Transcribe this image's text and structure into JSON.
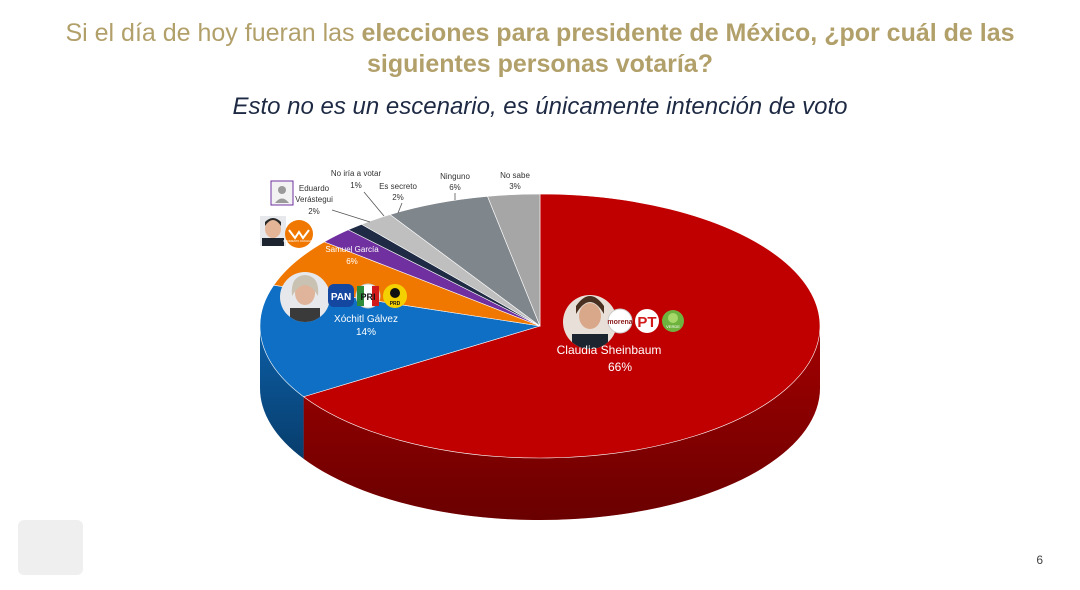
{
  "header": {
    "title_normal": "Si el día de hoy fueran las ",
    "title_bold": "elecciones para presidente de México, ¿por cuál de las siguientes personas votaría?",
    "subtitle": "Esto no es un escenario, es únicamente intención de voto"
  },
  "page_number": "6",
  "colors": {
    "title": "#b2a06b",
    "subtitle": "#1e2a44",
    "sheinbaum": "#c00000",
    "galvez": "#0e6fc4",
    "garcia": "#f07800",
    "verastegui": "#7030a0",
    "no_iria": "#1f2b44",
    "es_secreto": "#bfbfbf",
    "ninguno": "#7f868c",
    "no_sabe": "#a6a6a6"
  },
  "parties": {
    "morena": "morena",
    "pt": "PT",
    "verde": "VERDE",
    "pan": "PAN",
    "pri": "PRI",
    "prd": "PRD",
    "mc": "MOVIMIENTO CIUDADANO"
  },
  "chart_data": {
    "type": "pie",
    "unit": "%",
    "slices": [
      {
        "label": "Claudia Sheinbaum",
        "value": 66,
        "display": "66%",
        "color": "#c00000"
      },
      {
        "label": "Xóchitl Gálvez",
        "value": 14,
        "display": "14%",
        "color": "#0e6fc4"
      },
      {
        "label": "Samuel García",
        "value": 6,
        "display": "6%",
        "color": "#f07800"
      },
      {
        "label": "Eduardo Verástegui",
        "value": 2,
        "display": "2%",
        "color": "#7030a0"
      },
      {
        "label": "No iría a votar",
        "value": 1,
        "display": "1%",
        "color": "#1f2b44"
      },
      {
        "label": "Es secreto",
        "value": 2,
        "display": "2%",
        "color": "#bfbfbf"
      },
      {
        "label": "Ninguno",
        "value": 6,
        "display": "6%",
        "color": "#7f868c"
      },
      {
        "label": "No sabe",
        "value": 3,
        "display": "3%",
        "color": "#a6a6a6"
      }
    ]
  }
}
